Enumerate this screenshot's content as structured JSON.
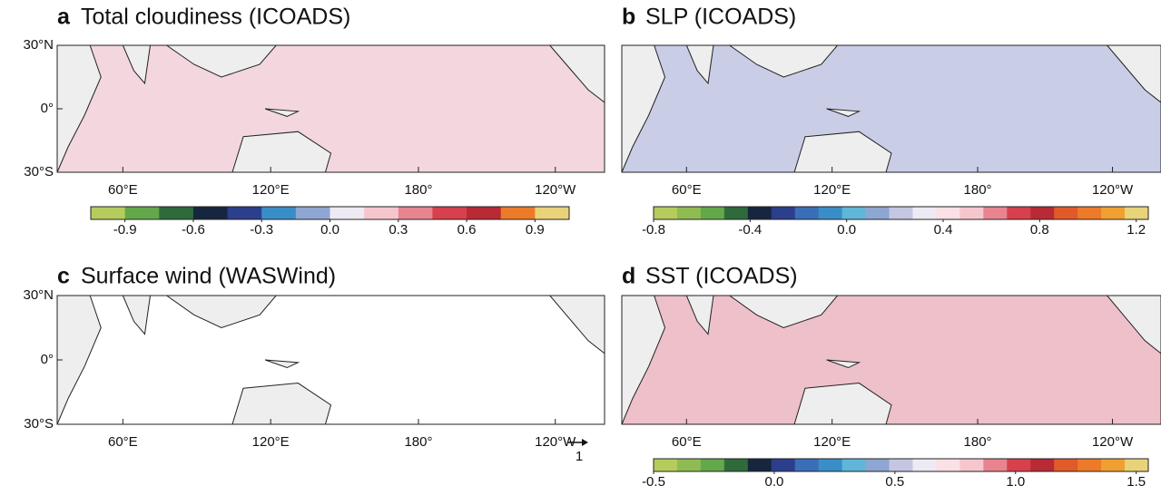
{
  "panels": [
    {
      "letter": "a",
      "title": "Total cloudiness (ICOADS)",
      "lat_labels": [
        "30°N",
        "0°",
        "30°S"
      ],
      "lon_labels": [
        "60°E",
        "120°E",
        "180°",
        "120°W"
      ],
      "colorbar": {
        "range": [
          -1.05,
          1.05
        ],
        "colors": [
          "#b5cc5c",
          "#63a84a",
          "#2f6b3a",
          "#16263f",
          "#2c3f8c",
          "#3a8ec8",
          "#8ea6d2",
          "#eeeaf4",
          "#f6c6cf",
          "#e8848f",
          "#d8404d",
          "#b82a34",
          "#ec7a28",
          "#e9d37a"
        ],
        "ticks": [
          -0.9,
          -0.6,
          -0.3,
          {
            "value": 0,
            "label": "0.0"
          },
          0.3,
          0.6,
          0.9
        ]
      }
    },
    {
      "letter": "b",
      "title": "SLP (ICOADS)",
      "lon_labels": [
        "60°E",
        "120°E",
        "180°",
        "120°W"
      ],
      "colorbar": {
        "range": [
          -0.8,
          1.25
        ],
        "colors": [
          "#b5cc5c",
          "#8fbc52",
          "#63a84a",
          "#2f6b3a",
          "#16263f",
          "#2c3f8c",
          "#3a6eb8",
          "#3a8ec8",
          "#5fb6d8",
          "#8ea6d2",
          "#c4c6e2",
          "#eeeaf4",
          "#fbe0e6",
          "#f6c6cf",
          "#e8848f",
          "#d8404d",
          "#b82a34",
          "#e05a2a",
          "#ec7a28",
          "#f0a030",
          "#e9d37a"
        ],
        "ticks": [
          -0.8,
          -0.4,
          {
            "value": 0,
            "label": "0.0"
          },
          0.4,
          0.8,
          1.2
        ]
      }
    },
    {
      "letter": "c",
      "title": "Surface wind (WASWind)",
      "lat_labels": [
        "30°N",
        "0°",
        "30°S"
      ],
      "lon_labels": [
        "60°E",
        "120°E",
        "180°",
        "120°W"
      ],
      "arrow_key": 1
    },
    {
      "letter": "d",
      "title": "SST (ICOADS)",
      "lon_labels": [
        "60°E",
        "120°E",
        "180°",
        "120°W"
      ],
      "colorbar": {
        "range": [
          -0.5,
          1.55
        ],
        "colors": [
          "#b5cc5c",
          "#8fbc52",
          "#63a84a",
          "#2f6b3a",
          "#16263f",
          "#2c3f8c",
          "#3a6eb8",
          "#3a8ec8",
          "#5fb6d8",
          "#8ea6d2",
          "#c4c6e2",
          "#eeeaf4",
          "#fbe0e6",
          "#f6c6cf",
          "#e8848f",
          "#d8404d",
          "#b82a34",
          "#e05a2a",
          "#ec7a28",
          "#f0a030",
          "#e9d37a"
        ],
        "ticks": [
          -0.5,
          {
            "value": 0,
            "label": "0.0"
          },
          0.5,
          {
            "value": 1,
            "label": "1.0"
          },
          1.5
        ]
      }
    }
  ]
}
